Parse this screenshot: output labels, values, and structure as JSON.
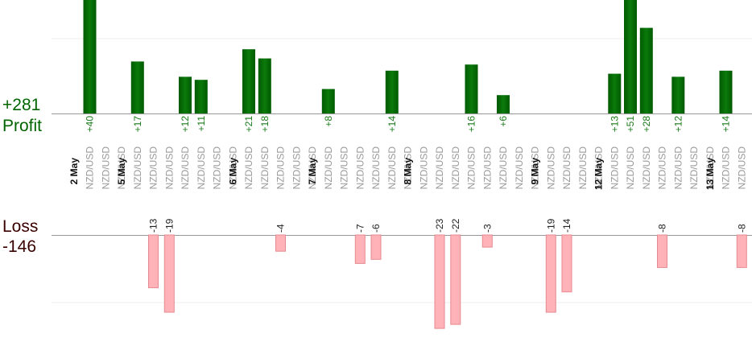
{
  "chart_data": {
    "type": "bar",
    "title": "",
    "xlabel": "",
    "ylabel": "",
    "profit": {
      "label": "Profit",
      "total_label": "+281",
      "values": [
        40,
        17,
        12,
        11,
        21,
        18,
        8,
        14,
        16,
        6,
        13,
        51,
        28,
        12,
        14
      ],
      "value_labels": [
        "+40",
        "+17",
        "+12",
        "+11",
        "+21",
        "+18",
        "+8",
        "+14",
        "+16",
        "+6",
        "+13",
        "+51",
        "+28",
        "+12",
        "+14"
      ],
      "color_dark": "#005a00",
      "color_light": "#0b7a0b",
      "label_color": "#1a7a1a"
    },
    "loss": {
      "label": "Loss",
      "total_label": "-146",
      "values": [
        -13,
        -19,
        -4,
        -7,
        -6,
        -23,
        -22,
        -3,
        -19,
        -14,
        -8,
        -8
      ],
      "value_labels": [
        "-13",
        "-19",
        "-4",
        "-7",
        "-6",
        "-23",
        "-22",
        "-3",
        "-19",
        "-14",
        "-8",
        "-8"
      ],
      "fill": "#ffb3b8",
      "stroke": "#e58a90",
      "label_color": "#222222"
    },
    "profit_total_color": "#006400",
    "loss_total_color": "#3a0000",
    "date_labels": [
      "2 May",
      "5 May",
      "6 May",
      "7 May",
      "8 May",
      "9 May",
      "12 May",
      "13 May"
    ],
    "pair_label": "NZD/USD",
    "trade_count": 42,
    "grid": true
  }
}
